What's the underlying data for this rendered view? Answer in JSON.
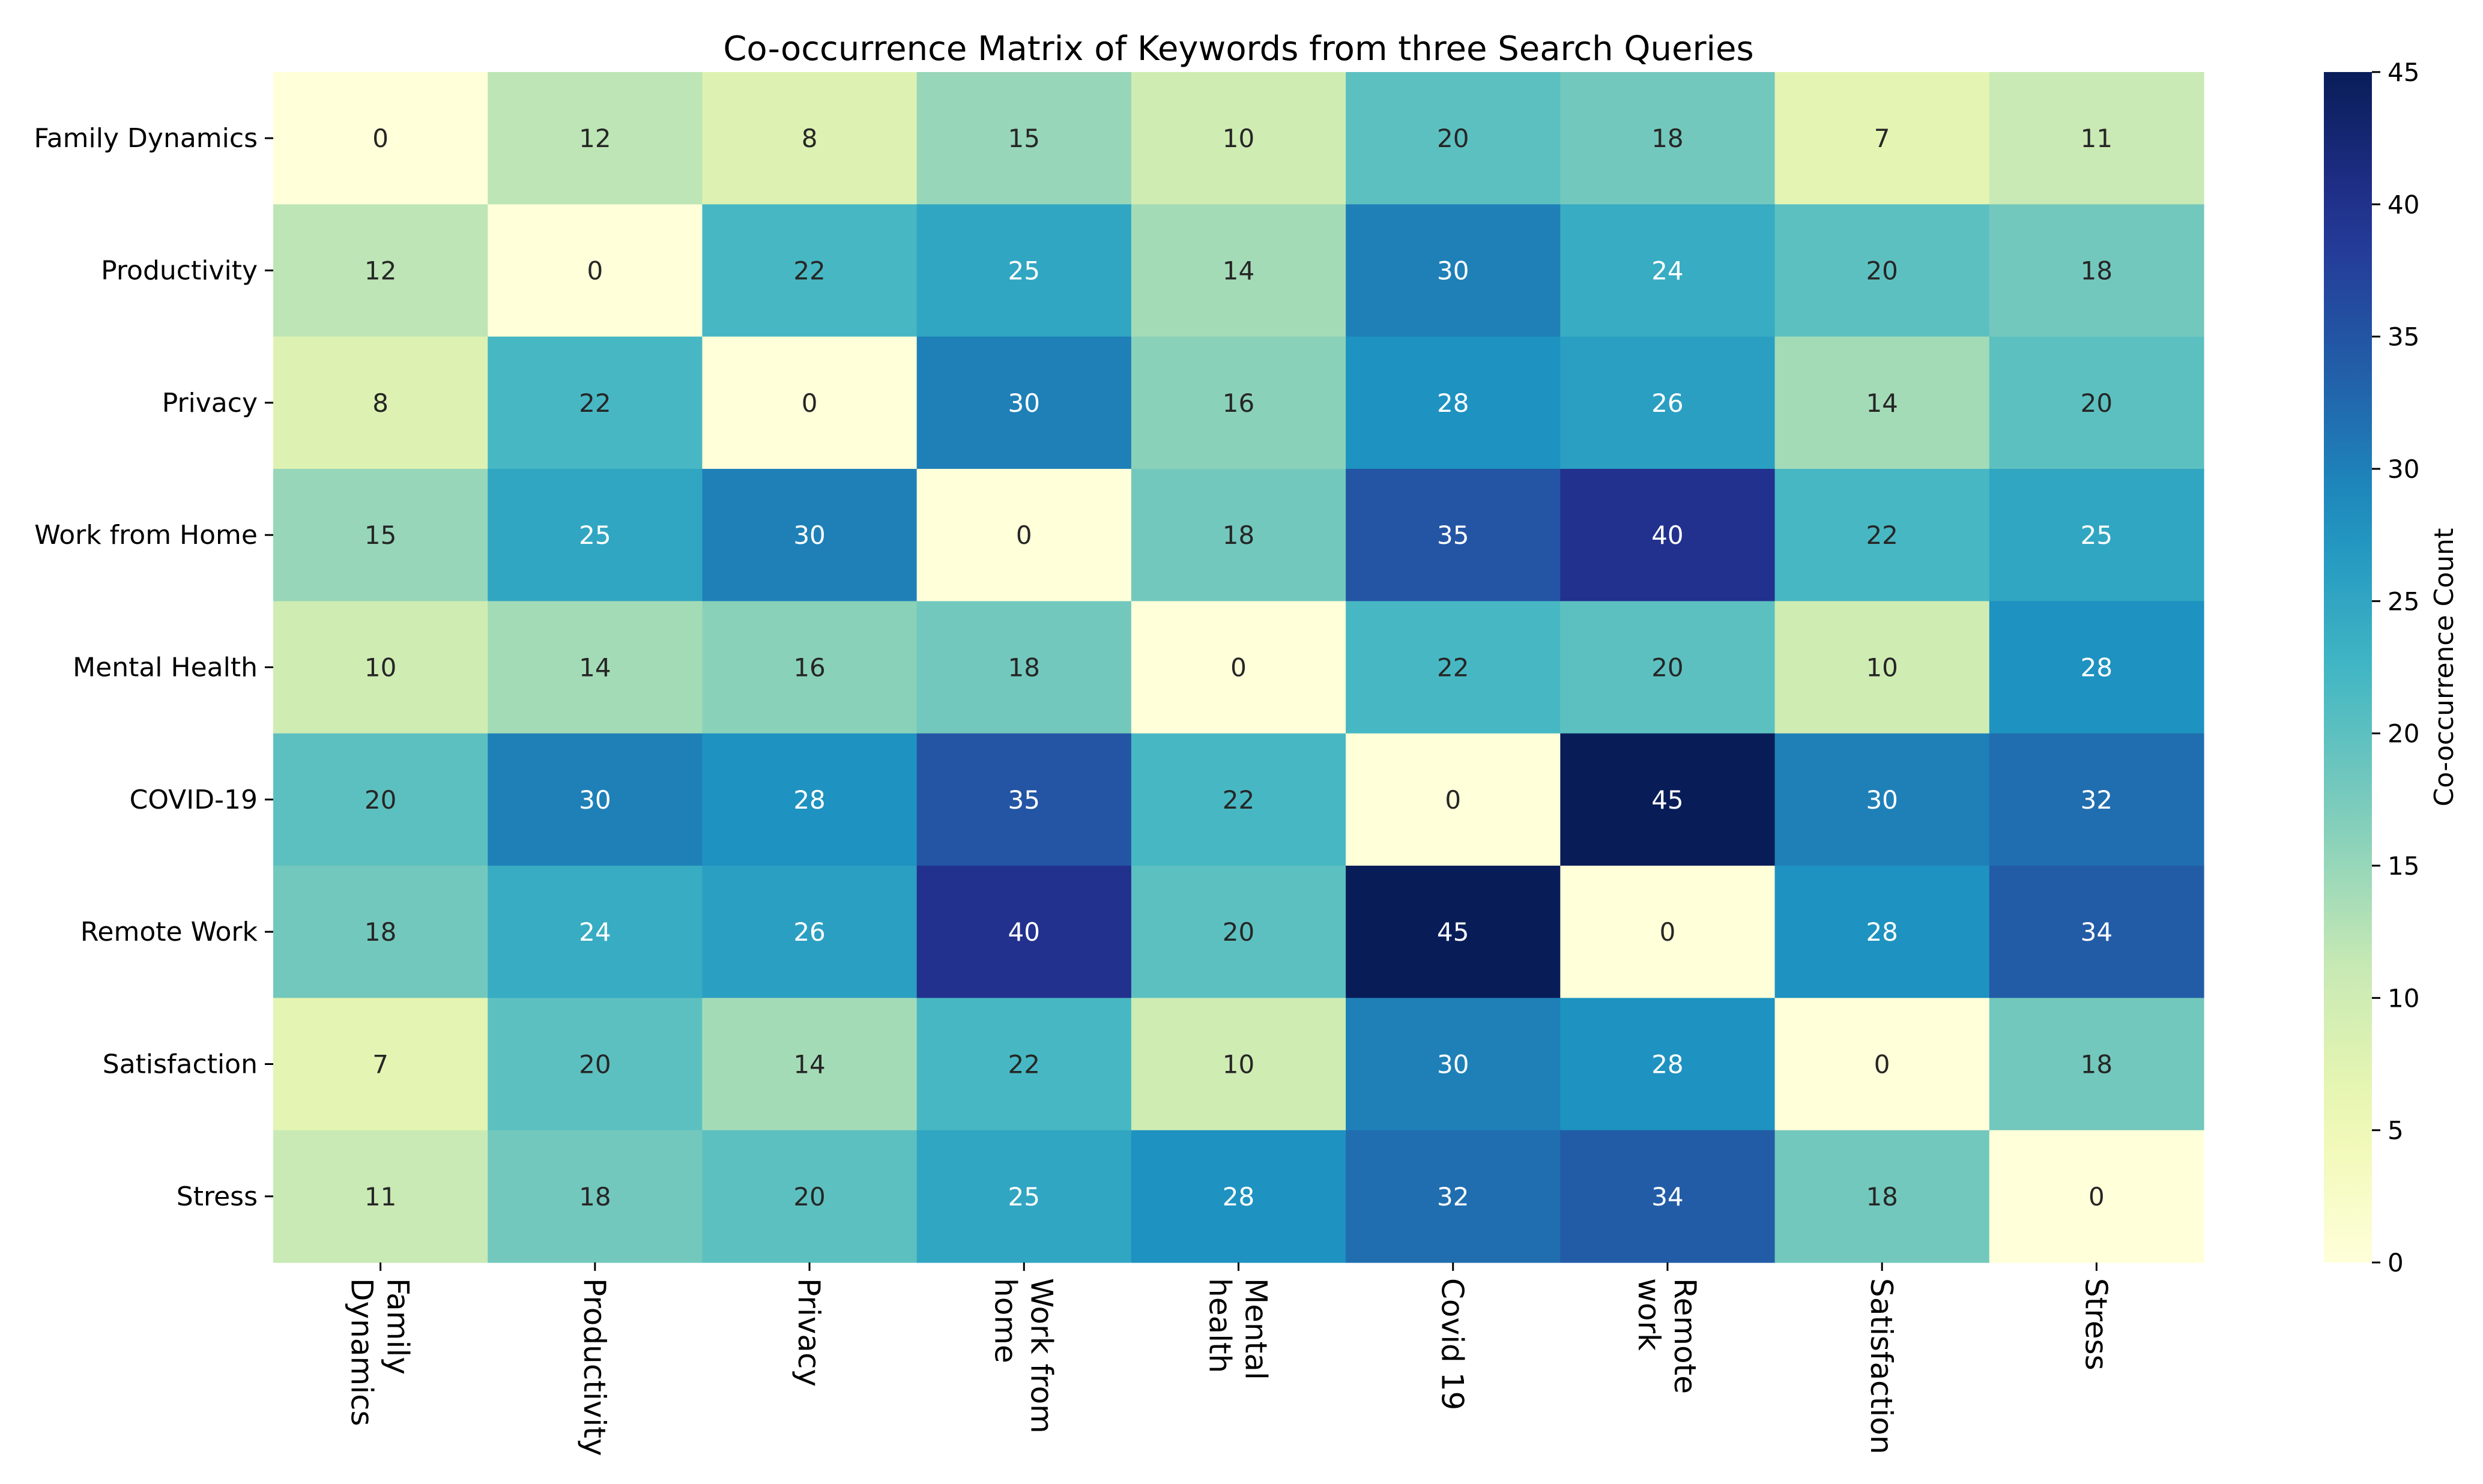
{
  "chart_data": {
    "type": "heatmap",
    "title": "Co-occurrence Matrix of Keywords from three Search Queries",
    "row_labels": [
      "Family Dynamics",
      "Productivity",
      "Privacy",
      "Work from Home",
      "Mental Health",
      "COVID-19",
      "Remote Work",
      "Satisfaction",
      "Stress"
    ],
    "col_labels": [
      [
        "Family",
        "Dynamics"
      ],
      [
        "Productivity"
      ],
      [
        "Privacy"
      ],
      [
        "Work from",
        "home"
      ],
      [
        "Mental",
        "health"
      ],
      [
        "Covid 19"
      ],
      [
        "Remote",
        "work"
      ],
      [
        "Satisfaction"
      ],
      [
        "Stress"
      ]
    ],
    "values": [
      [
        0,
        12,
        8,
        15,
        10,
        20,
        18,
        7,
        11
      ],
      [
        12,
        0,
        22,
        25,
        14,
        30,
        24,
        20,
        18
      ],
      [
        8,
        22,
        0,
        30,
        16,
        28,
        26,
        14,
        20
      ],
      [
        15,
        25,
        30,
        0,
        18,
        35,
        40,
        22,
        25
      ],
      [
        10,
        14,
        16,
        18,
        0,
        22,
        20,
        10,
        28
      ],
      [
        20,
        30,
        28,
        35,
        22,
        0,
        45,
        30,
        32
      ],
      [
        18,
        24,
        26,
        40,
        20,
        45,
        0,
        28,
        34
      ],
      [
        7,
        20,
        14,
        22,
        10,
        30,
        28,
        0,
        18
      ],
      [
        11,
        18,
        20,
        25,
        28,
        32,
        34,
        18,
        0
      ]
    ],
    "colormap": "YlGnBu",
    "colorbar": {
      "label": "Co-occurrence Count",
      "min": 0,
      "max": 45,
      "ticks": [
        0,
        5,
        10,
        15,
        20,
        25,
        30,
        35,
        40,
        45
      ]
    },
    "annotated": true
  }
}
